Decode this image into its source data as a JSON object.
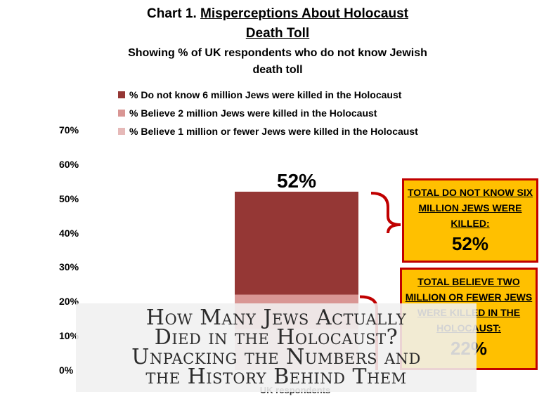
{
  "chart_data": {
    "type": "bar",
    "title_prefix": "Chart 1.",
    "title_underlined_1": "Misperceptions About Holocaust",
    "title_underlined_2": "Death Toll",
    "subtitle_line1": "Showing % of UK respondents who do not know Jewish",
    "subtitle_line2": "death toll",
    "categories": [
      "UK respondents"
    ],
    "xlabel": "UK respondents",
    "series": [
      {
        "name": "% Do not know 6 million Jews were killed in the Holocaust",
        "values": [
          52
        ],
        "color": "#953735"
      },
      {
        "name": "% Believe 2 million Jews were killed in the Holocaust",
        "values": [
          22
        ],
        "color": "#d99694"
      },
      {
        "name": "% Believe 1 million or fewer Jews were killed in the Holocaust",
        "values": [
          12
        ],
        "color": "#e6b9b8"
      }
    ],
    "ylim": [
      0,
      70
    ],
    "yticks": [
      "0%",
      "10%",
      "20%",
      "30%",
      "40%",
      "50%",
      "60%",
      "70%"
    ],
    "ytick_values": [
      0,
      10,
      20,
      30,
      40,
      50,
      60,
      70
    ],
    "data_label": "52%",
    "bracket_color": "#c00000",
    "callouts": [
      {
        "label": "TOTAL DO NOT KNOW SIX MILLION JEWS WERE KILLED:",
        "value": "52%"
      },
      {
        "label": "TOTAL BELIEVE TWO MILLION OR FEWER JEWS WERE KILLED IN THE HOLOCAUST:",
        "value": "22%"
      }
    ]
  },
  "overlay": {
    "line1": "How Many Jews Actually",
    "line2": "Died in the Holocaust?",
    "line3": "Unpacking the Numbers and",
    "line4": "the History Behind Them"
  }
}
